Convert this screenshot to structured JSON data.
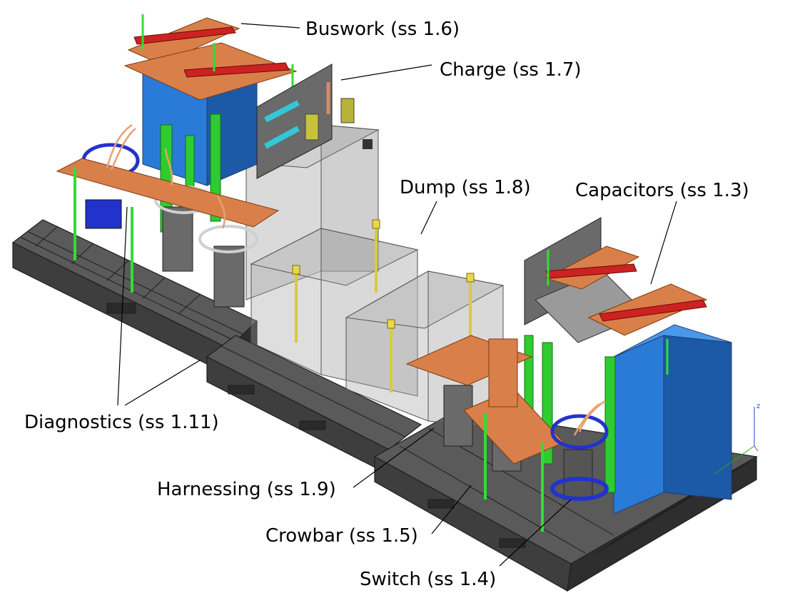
{
  "callouts": {
    "buswork": "Buswork (ss 1.6)",
    "charge": "Charge (ss 1.7)",
    "dump": "Dump (ss 1.8)",
    "capacitors": "Capacitors (ss 1.3)",
    "diagnostics": "Diagnostics (ss 1.11)",
    "harnessing": "Harnessing (ss 1.9)",
    "crowbar": "Crowbar (ss 1.5)",
    "switch": "Switch (ss 1.4)"
  },
  "axis_triad": {
    "z_label": "z"
  },
  "colors": {
    "pallet": "#4a4a4a",
    "pallet_edge": "#1e1e1e",
    "capacitor": "#2a7ad8",
    "capacitor_dark": "#1c5aa8",
    "copper_bus": "#d9804a",
    "red_clamp": "#cc2222",
    "green_post": "#33dd33",
    "glass_enclosure": "rgba(150,150,150,0.35)",
    "yellow_rod": "#d8cc3a",
    "diag_ring": "#2233cc",
    "cable": "#e8a070"
  }
}
